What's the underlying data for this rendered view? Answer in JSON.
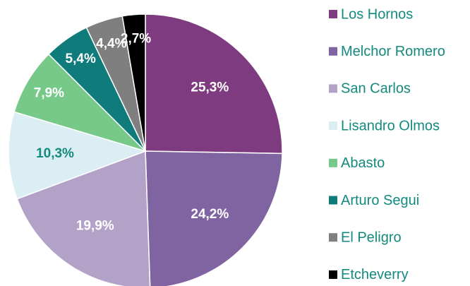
{
  "chart_data": {
    "type": "pie",
    "categories": [
      "Los Hornos",
      "Melchor Romero",
      "San Carlos",
      "Lisandro Olmos",
      "Abasto",
      "Arturo Segui",
      "El Peligro",
      "Etcheverry"
    ],
    "values": [
      25.3,
      24.2,
      19.9,
      10.3,
      7.9,
      5.4,
      4.4,
      2.7
    ],
    "value_labels": [
      "25,3%",
      "24,2%",
      "19,9%",
      "10,3%",
      "7,9%",
      "5,4%",
      "4,4%",
      "2,7%"
    ],
    "colors": [
      "#7f3b7f",
      "#8064a2",
      "#b3a2c7",
      "#dbeef4",
      "#77c98a",
      "#0f7b7b",
      "#7f7f7f",
      "#000000"
    ],
    "value_label_colors": [
      "#ffffff",
      "#ffffff",
      "#ffffff",
      "#138a7e",
      "#ffffff",
      "#ffffff",
      "#ffffff",
      "#ffffff"
    ],
    "legend": "right"
  }
}
